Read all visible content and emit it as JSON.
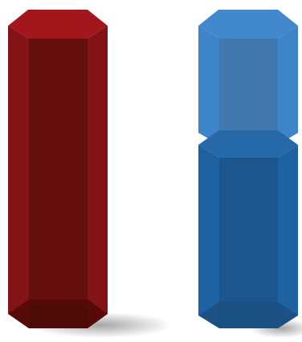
{
  "shapes": [
    {
      "id": "red-hexagonal-column",
      "fill_fraction": 1.0,
      "colors": {
        "cap": "#a3171c",
        "front": "#640f0d",
        "left": "#831316",
        "right": "#831316",
        "bottom": "#520b08"
      }
    },
    {
      "id": "blue-hexagonal-column",
      "fill_fraction": 0.6,
      "colors": {
        "cap": "#4288cc",
        "empty_front": "#4178ad",
        "empty_side": "#3d84c9",
        "fill_cap": "#2569a8",
        "fill_front": "#1d568c",
        "fill_side": "#1f62a1",
        "bottom": "#1b4f80"
      }
    }
  ]
}
